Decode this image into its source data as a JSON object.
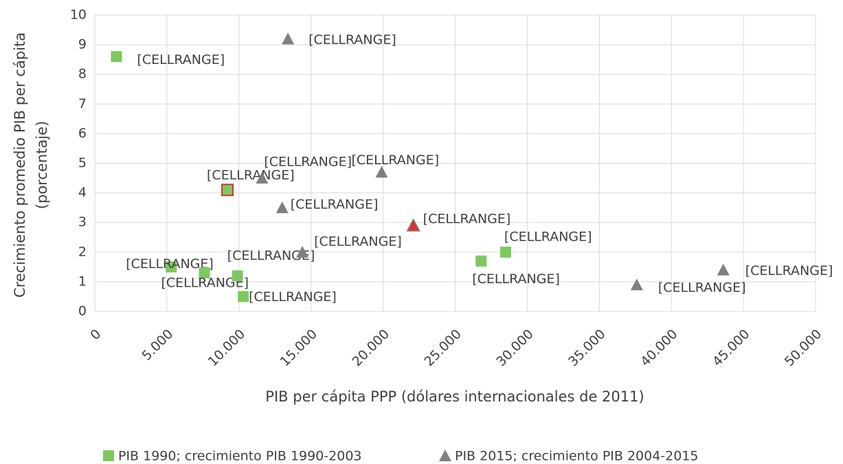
{
  "chart_data": {
    "type": "scatter",
    "x_label": "PIB per cápita PPP (dólares internacionales de 2011)",
    "y_label": [
      "Crecimiento promedio PIB per cápita",
      "(porcentaje)"
    ],
    "xlim": [
      0,
      50000
    ],
    "ylim": [
      0,
      10
    ],
    "xticks": [
      0,
      {
        "value": 5000,
        "label": "5.000"
      },
      {
        "value": 10000,
        "label": "10.000"
      },
      {
        "value": 15000,
        "label": "15.000"
      },
      {
        "value": 20000,
        "label": "20.000"
      },
      {
        "value": 25000,
        "label": "25.000"
      },
      {
        "value": 30000,
        "label": "30.000"
      },
      {
        "value": 35000,
        "label": "35.000"
      },
      {
        "value": 40000,
        "label": "40.000"
      },
      {
        "value": 45000,
        "label": "45.000"
      },
      {
        "value": 50000,
        "label": "50.000"
      }
    ],
    "yticks": [
      0,
      1,
      2,
      3,
      4,
      5,
      6,
      7,
      8,
      9,
      10
    ],
    "grid": true,
    "legend": "bottom",
    "highlight_color": "#d9342b",
    "series": [
      {
        "name": "PIB 1990; crecimiento PIB 1990-2003",
        "color": "#7dc861",
        "marker": "square",
        "x": [
          1500,
          5300,
          7600,
          9200,
          9900,
          10300,
          26800,
          28500
        ],
        "values": [
          8.6,
          1.5,
          1.3,
          4.1,
          1.2,
          0.5,
          1.7,
          2.0
        ],
        "labels": [
          "[CELLRANGE]",
          "[CELLRANGE]",
          "[CELLRANGE]",
          "[CELLRANGE]",
          "[CELLRANGE]",
          "[CELLRANGE]",
          "[CELLRANGE]",
          "[CELLRANGE]"
        ],
        "highlight": [
          3
        ]
      },
      {
        "name": "PIB 2015; crecimiento PIB 2004-2015",
        "color": "#7f7f7f",
        "marker": "triangle",
        "x": [
          13400,
          11600,
          19900,
          13000,
          22100,
          14400,
          37600,
          43600
        ],
        "values": [
          9.2,
          4.5,
          4.7,
          3.5,
          2.9,
          2.0,
          0.9,
          1.4
        ],
        "labels": [
          "[CELLRANGE]",
          "[CELLRANGE]",
          "[CELLRANGE]",
          "[CELLRANGE]",
          "[CELLRANGE]",
          "[CELLRANGE]",
          "[CELLRANGE]",
          "[CELLRANGE]"
        ],
        "highlight": [
          4
        ]
      }
    ]
  }
}
